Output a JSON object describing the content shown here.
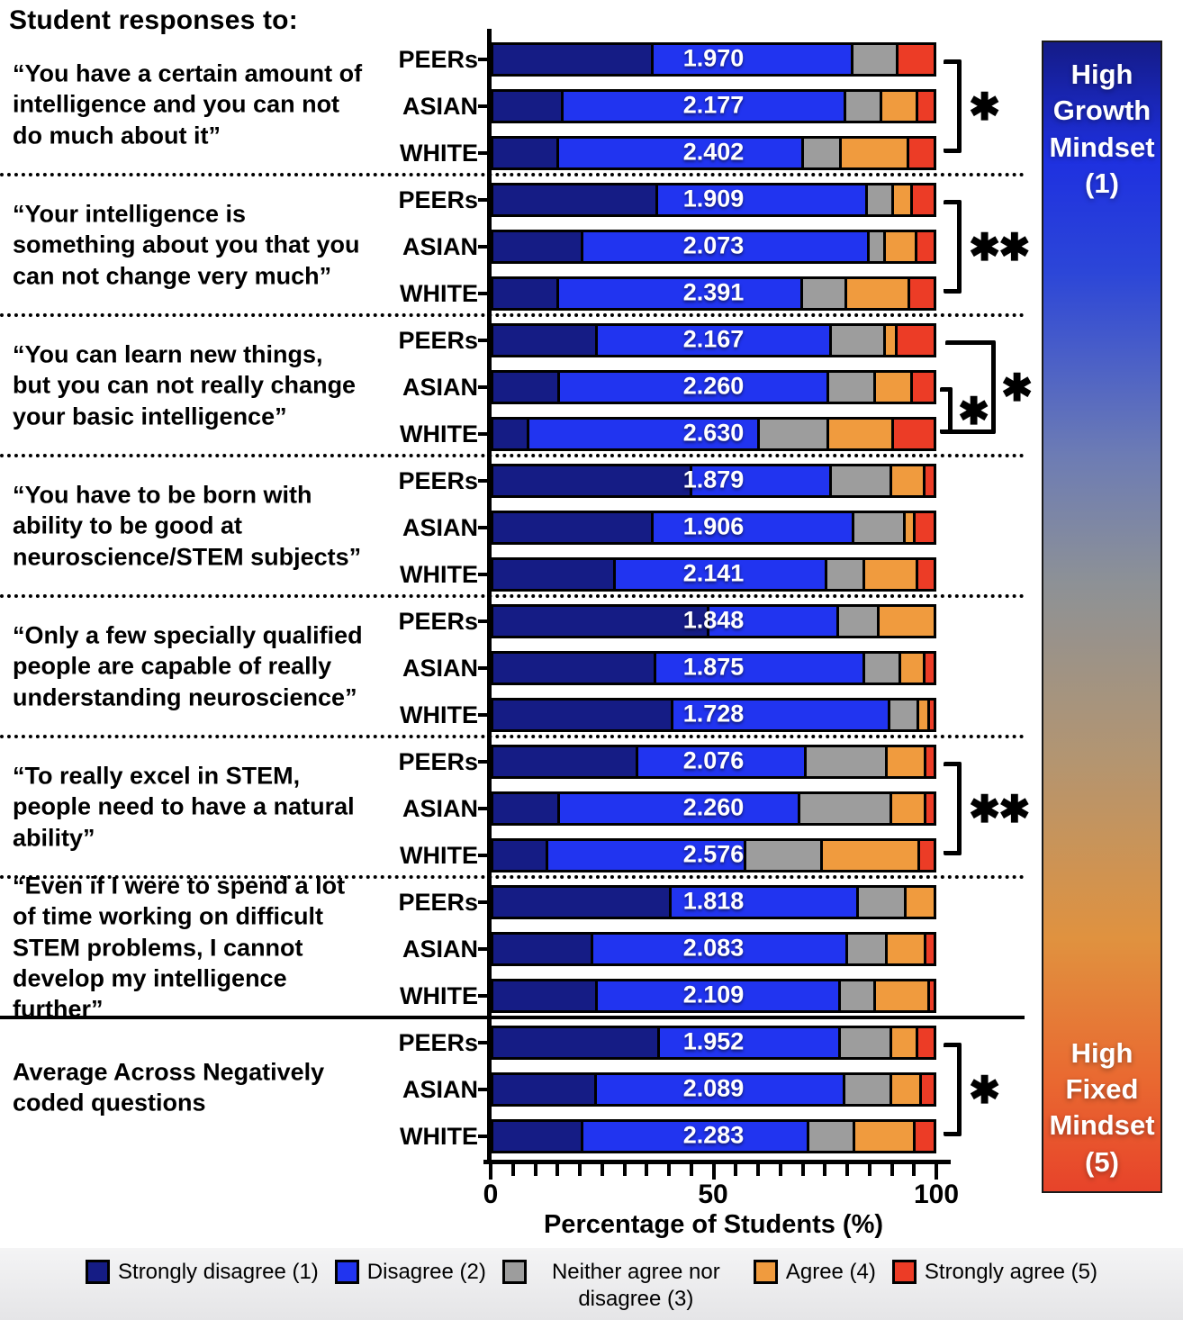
{
  "header": {
    "title": "Student responses to:"
  },
  "axis": {
    "x_title": "Percentage of Students (%)",
    "x_tick_labels": [
      "0",
      "50",
      "100"
    ],
    "x_range": [
      0,
      100
    ],
    "minor_tick_step": 5
  },
  "colorbar": {
    "top_label": "High Growth Mindset (1)",
    "bottom_label": "High Fixed Mindset (5)",
    "gradient": [
      "#141b87",
      "#2134f0",
      "#8d9196",
      "#e0923f",
      "#e7432a"
    ]
  },
  "chart_data": {
    "type": "bar",
    "stacked": true,
    "orientation": "horizontal",
    "categories": [
      "Strongly disagree (1)",
      "Disagree (2)",
      "Neither agree nor disagree (3)",
      "Agree (4)",
      "Strongly agree (5)"
    ],
    "colors": [
      "#151c85",
      "#2134f0",
      "#9d9d9d",
      "#f09b3e",
      "#ec3c26"
    ],
    "xlabel": "Percentage of Students (%)",
    "xlim": [
      0,
      100
    ],
    "groups": [
      {
        "question": "“You have a certain amount of intelligence and you can not do much about it”",
        "separator_after": "dotted",
        "significance": [
          {
            "from": 0,
            "to": 2,
            "stars": "✱",
            "style": "single"
          }
        ],
        "rows": [
          {
            "label": "PEERs",
            "mean": "1.970",
            "values": [
              35.8,
              45.4,
              10.3,
              0,
              8.5
            ]
          },
          {
            "label": "ASIAN",
            "mean": "2.177",
            "values": [
              15.4,
              64.1,
              8.2,
              8.2,
              4.1
            ]
          },
          {
            "label": "WHITE",
            "mean": "2.402",
            "values": [
              14.3,
              55.7,
              8.5,
              15.4,
              6.1
            ]
          }
        ]
      },
      {
        "question": "“Your intelligence is something about you that you can not change very much”",
        "separator_after": "dotted",
        "significance": [
          {
            "from": 0,
            "to": 2,
            "stars": "✱✱",
            "style": "single"
          }
        ],
        "rows": [
          {
            "label": "PEERs",
            "mean": "1.909",
            "values": [
              36.8,
              47.7,
              5.8,
              4.4,
              5.3
            ]
          },
          {
            "label": "ASIAN",
            "mean": "2.073",
            "values": [
              19.8,
              65.0,
              3.8,
              7.1,
              4.3
            ]
          },
          {
            "label": "WHITE",
            "mean": "2.391",
            "values": [
              14.3,
              55.5,
              9.9,
              14.3,
              6.0
            ]
          }
        ]
      },
      {
        "question": "“You can learn new things, but you can not really change your basic intelligence”",
        "separator_after": "dotted",
        "significance": [
          {
            "from": 1,
            "to": 2,
            "stars": "✱",
            "style": "inner"
          },
          {
            "from": 0,
            "to": 2,
            "stars": "✱",
            "style": "outer"
          }
        ],
        "rows": [
          {
            "label": "PEERs",
            "mean": "2.167",
            "values": [
              23.2,
              53.1,
              12.3,
              2.7,
              8.7
            ]
          },
          {
            "label": "ASIAN",
            "mean": "2.260",
            "values": [
              14.6,
              61.0,
              10.6,
              8.5,
              5.3
            ]
          },
          {
            "label": "WHITE",
            "mean": "2.630",
            "values": [
              7.5,
              52.4,
              15.7,
              14.7,
              9.7
            ]
          }
        ]
      },
      {
        "question": "“You have to be born with ability to be good at neuroscience/STEM subjects”",
        "separator_after": "dotted",
        "significance": [],
        "rows": [
          {
            "label": "PEERs",
            "mean": "1.879",
            "values": [
              44.6,
              31.7,
              13.6,
              7.6,
              2.5
            ]
          },
          {
            "label": "ASIAN",
            "mean": "1.906",
            "values": [
              35.8,
              45.6,
              11.6,
              2.4,
              4.6
            ]
          },
          {
            "label": "WHITE",
            "mean": "2.141",
            "values": [
              27.2,
              48.1,
              8.5,
              12.2,
              4.0
            ]
          }
        ]
      },
      {
        "question": "“Only a few specially qualified people are capable of really understanding neuroscience”",
        "separator_after": "dotted",
        "significance": [],
        "rows": [
          {
            "label": "PEERs",
            "mean": "1.848",
            "values": [
              48.4,
              29.6,
              9.2,
              12.8,
              0
            ]
          },
          {
            "label": "ASIAN",
            "mean": "1.875",
            "values": [
              36.4,
              47.4,
              8.2,
              5.6,
              2.4
            ]
          },
          {
            "label": "WHITE",
            "mean": "1.728",
            "values": [
              40.2,
              49.4,
              6.5,
              2.4,
              1.5
            ]
          }
        ]
      },
      {
        "question": "“To really excel in STEM, people need to have a natural ability”",
        "separator_after": "dotted",
        "significance": [
          {
            "from": 0,
            "to": 2,
            "stars": "✱✱",
            "style": "single"
          }
        ],
        "rows": [
          {
            "label": "PEERs",
            "mean": "2.076",
            "values": [
              32.4,
              38.1,
              18.4,
              8.9,
              2.2
            ]
          },
          {
            "label": "ASIAN",
            "mean": "2.260",
            "values": [
              14.6,
              54.5,
              20.8,
              7.9,
              2.2
            ]
          },
          {
            "label": "WHITE",
            "mean": "2.576",
            "values": [
              11.9,
              45.0,
              17.4,
              22.1,
              3.6
            ]
          }
        ]
      },
      {
        "question": "“Even if I were to spend a lot of time working on difficult STEM problems, I cannot develop my intelligence further”",
        "separator_after": "solid",
        "significance": [],
        "rows": [
          {
            "label": "PEERs",
            "mean": "1.818",
            "values": [
              39.9,
              42.5,
              10.9,
              6.7,
              0
            ]
          },
          {
            "label": "ASIAN",
            "mean": "2.083",
            "values": [
              22.1,
              57.9,
              8.9,
              8.9,
              2.2
            ]
          },
          {
            "label": "WHITE",
            "mean": "2.109",
            "values": [
              23.2,
              55.1,
              7.9,
              12.3,
              1.5
            ]
          }
        ]
      },
      {
        "question": "Average Across Negatively coded questions",
        "separator_after": null,
        "significance": [
          {
            "from": 0,
            "to": 2,
            "stars": "✱",
            "style": "single"
          }
        ],
        "rows": [
          {
            "label": "PEERs",
            "mean": "1.952",
            "values": [
              37.3,
              41.0,
              11.6,
              6.1,
              4.0
            ]
          },
          {
            "label": "ASIAN",
            "mean": "2.089",
            "values": [
              22.9,
              56.4,
              10.6,
              6.8,
              3.3
            ]
          },
          {
            "label": "WHITE",
            "mean": "2.283",
            "values": [
              19.8,
              51.3,
              10.6,
              13.7,
              4.6
            ]
          }
        ]
      }
    ]
  }
}
